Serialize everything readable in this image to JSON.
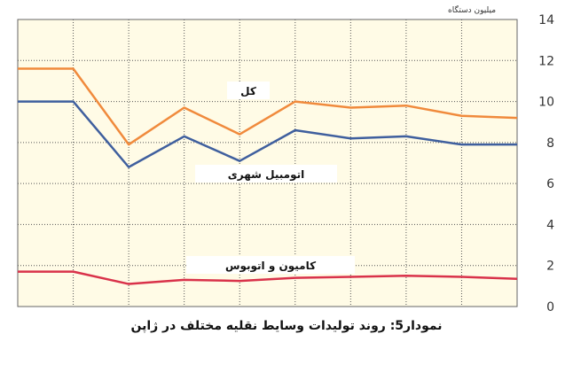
{
  "caption": "نمودار5: روند تولیدات وسایط نقلیه مختلف در ژاپن",
  "chart_data": {
    "type": "line",
    "unit_label": "میلیون دستگاه",
    "ylim": [
      0,
      14
    ],
    "y_ticks": [
      "0",
      "2",
      "4",
      "6",
      "8",
      "10",
      "12",
      "14"
    ],
    "grid": true,
    "y_axis_position": "right",
    "x_points": 10,
    "series": [
      {
        "name": "کل",
        "color": "#f08a3c",
        "values": [
          11.6,
          11.6,
          7.9,
          9.7,
          8.4,
          10.0,
          9.7,
          9.8,
          9.3,
          9.2
        ]
      },
      {
        "name": "اتومبیل شهری",
        "color": "#3f5f9e",
        "values": [
          10.0,
          10.0,
          6.8,
          8.3,
          7.1,
          8.6,
          8.2,
          8.3,
          7.9,
          7.9
        ]
      },
      {
        "name": "کامیون و اتوبوس",
        "color": "#d9324a",
        "values": [
          1.7,
          1.7,
          1.1,
          1.3,
          1.25,
          1.4,
          1.45,
          1.5,
          1.45,
          1.35
        ]
      }
    ],
    "background": "#fffbe6"
  }
}
